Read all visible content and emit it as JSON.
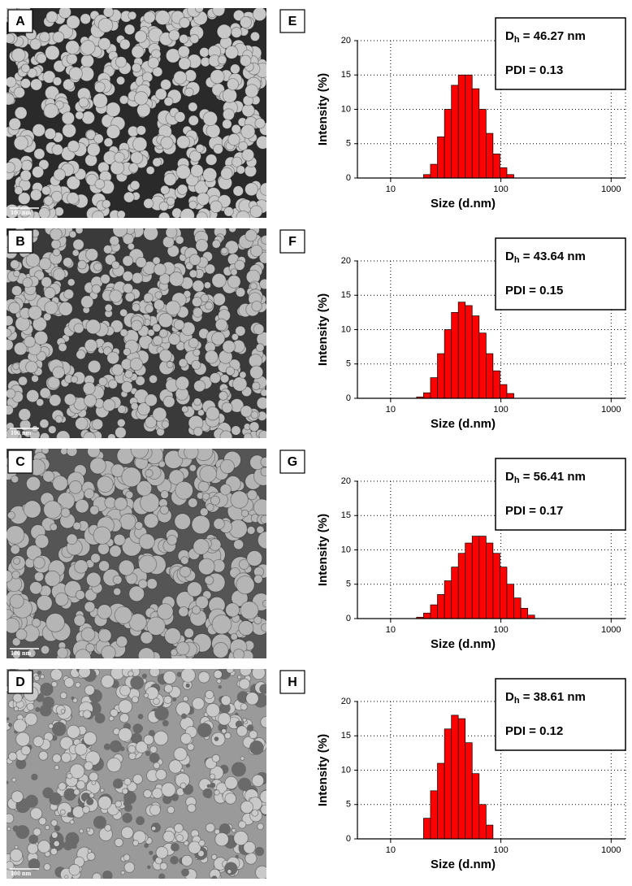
{
  "images": [
    {
      "label": "A",
      "scale_bar": "100 nm"
    },
    {
      "label": "B",
      "scale_bar": "100 nm"
    },
    {
      "label": "C",
      "scale_bar": "100 nm"
    },
    {
      "label": "D",
      "scale_bar": "100 nm"
    }
  ],
  "chart_data": [
    {
      "type": "histogram",
      "panel": "E",
      "x_label": "Size (d.nm)",
      "y_label": "Intensity (%)",
      "dh_symbol": "D",
      "dh_subscript": "h",
      "dh_value": " = 46.27 nm",
      "pdi": "PDI = 0.13",
      "bins": [
        19.9,
        23.0,
        26.6,
        30.8,
        35.6,
        41.1,
        47.5,
        54.9,
        63.5,
        73.4,
        84.8,
        98.1,
        113.4,
        131.1
      ],
      "values": [
        0.5,
        2,
        6,
        10,
        13.5,
        15,
        15,
        13,
        10,
        6.5,
        3.5,
        1.5,
        0.5
      ],
      "color": "#ff0000",
      "xlim": [
        5,
        1350
      ],
      "xticks": [
        10,
        100,
        1000
      ],
      "log_x": true,
      "ylim": [
        0,
        20
      ],
      "yticks": [
        0,
        5,
        10,
        15,
        20
      ],
      "grid": true
    },
    {
      "type": "histogram",
      "panel": "F",
      "x_label": "Size (d.nm)",
      "y_label": "Intensity (%)",
      "dh_symbol": "D",
      "dh_subscript": "h",
      "dh_value": " = 43.64 nm",
      "pdi": "PDI = 0.15",
      "bins": [
        17.2,
        19.9,
        23.0,
        26.6,
        30.8,
        35.6,
        41.1,
        47.5,
        54.9,
        63.5,
        73.4,
        84.8,
        98.1,
        113.4,
        131.1
      ],
      "values": [
        0.2,
        0.8,
        3,
        6.5,
        10,
        12.5,
        14,
        13.5,
        12,
        9.5,
        6.5,
        4,
        2,
        0.7
      ],
      "color": "#ff0000",
      "xlim": [
        5,
        1350
      ],
      "xticks": [
        10,
        100,
        1000
      ],
      "log_x": true,
      "ylim": [
        0,
        20
      ],
      "yticks": [
        0,
        5,
        10,
        15,
        20
      ],
      "grid": true
    },
    {
      "type": "histogram",
      "panel": "G",
      "x_label": "Size (d.nm)",
      "y_label": "Intensity (%)",
      "dh_symbol": "D",
      "dh_subscript": "h",
      "dh_value": " = 56.41 nm",
      "pdi": "PDI = 0.17",
      "bins": [
        17.2,
        19.9,
        23.0,
        26.6,
        30.8,
        35.6,
        41.1,
        47.5,
        54.9,
        63.5,
        73.4,
        84.8,
        98.1,
        113.4,
        131.1,
        151.6,
        175.2,
        202.5
      ],
      "values": [
        0.2,
        0.8,
        2,
        3.5,
        5.5,
        7.5,
        9.5,
        11,
        12,
        12,
        11,
        9.5,
        7.5,
        5,
        3,
        1.5,
        0.5
      ],
      "color": "#ff0000",
      "xlim": [
        5,
        1350
      ],
      "xticks": [
        10,
        100,
        1000
      ],
      "log_x": true,
      "ylim": [
        0,
        20
      ],
      "yticks": [
        0,
        5,
        10,
        15,
        20
      ],
      "grid": true
    },
    {
      "type": "histogram",
      "panel": "H",
      "x_label": "Size (d.nm)",
      "y_label": "Intensity (%)",
      "dh_symbol": "D",
      "dh_subscript": "h",
      "dh_value": " = 38.61 nm",
      "pdi": "PDI = 0.12",
      "bins": [
        19.9,
        23.0,
        26.6,
        30.8,
        35.6,
        41.1,
        47.5,
        54.9,
        63.5,
        73.4,
        84.8
      ],
      "values": [
        3,
        7,
        11,
        16,
        18,
        17.5,
        14,
        9.5,
        5,
        2
      ],
      "color": "#ff0000",
      "xlim": [
        5,
        1350
      ],
      "xticks": [
        10,
        100,
        1000
      ],
      "log_x": true,
      "ylim": [
        0,
        20
      ],
      "yticks": [
        0,
        5,
        10,
        15,
        20
      ],
      "grid": true
    }
  ]
}
